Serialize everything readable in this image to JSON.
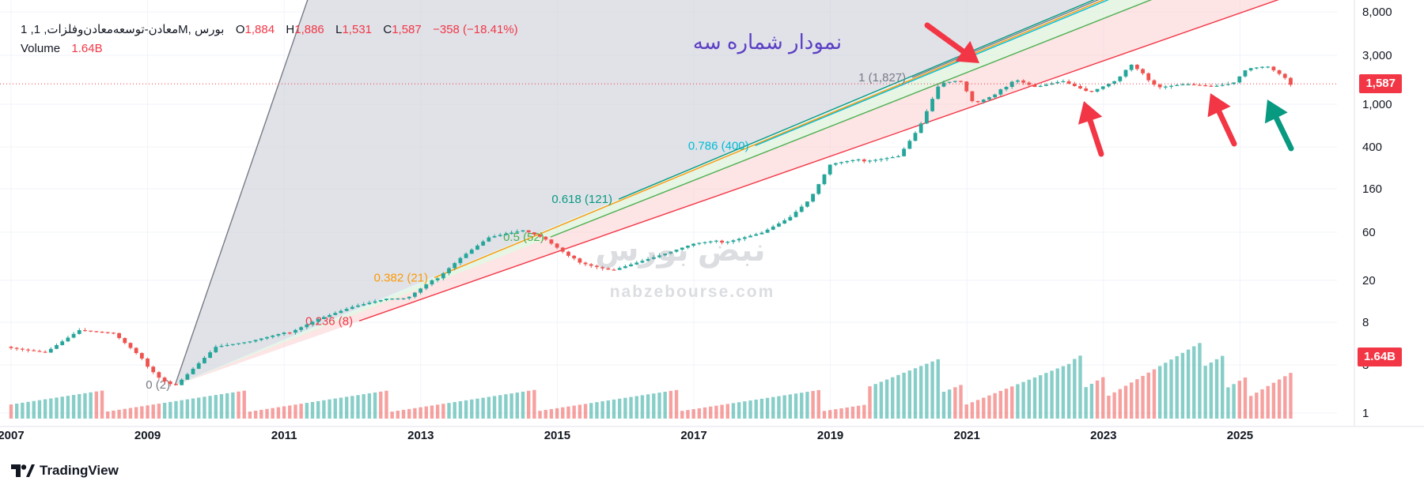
{
  "legend": {
    "symbol": "1 ,معادن-توسعه‌معادن‌وفلزات, 1M, بورس",
    "o_label": "O",
    "o_value": "1,884",
    "h_label": "H",
    "h_value": "1,886",
    "l_label": "L",
    "l_value": "1,531",
    "c_label": "C",
    "c_value": "1,587",
    "change": "−358 (−18.41%)",
    "volume_label": "Volume",
    "volume_value": "1.64B"
  },
  "annotation_title": "نمودار شماره سه",
  "watermark": {
    "url": "nabzebourse.com",
    "logo_text": "نبض بورس"
  },
  "footer": {
    "brand": "TradingView"
  },
  "price_tag": {
    "value": "1,587",
    "color": "#f23645"
  },
  "volume_tag": {
    "value": "1.64B",
    "color": "#f23645"
  },
  "colors": {
    "up": "#26a69a",
    "down": "#ef5350",
    "arrow_red": "#f23645",
    "arrow_green": "#089981",
    "annotation": "#5b3fc4"
  },
  "chart_data": {
    "type": "candlestick",
    "scale": "log",
    "y_ticks": [
      "8,000",
      "3,000",
      "1,000",
      "400",
      "160",
      "60",
      "20",
      "8",
      "3",
      "1"
    ],
    "x_ticks": [
      "2007",
      "2009",
      "2011",
      "2013",
      "2015",
      "2017",
      "2019",
      "2021",
      "2023",
      "2025"
    ],
    "fib_levels": [
      {
        "label": "0 (2)",
        "price": 2,
        "color": "#787b86"
      },
      {
        "label": "0.236 (8)",
        "price": 8,
        "color": "#f23645"
      },
      {
        "label": "0.382 (21)",
        "price": 21,
        "color": "#ff9800"
      },
      {
        "label": "0.5 (52)",
        "price": 52,
        "color": "#4caf50"
      },
      {
        "label": "0.618 (121)",
        "price": 121,
        "color": "#089981"
      },
      {
        "label": "0.786 (400)",
        "price": 400,
        "color": "#00bcd4"
      },
      {
        "label": "1 (1,827)",
        "price": 1827,
        "color": "#787b86"
      }
    ],
    "price_path": [
      [
        2007.0,
        4.5
      ],
      [
        2007.5,
        4.0
      ],
      [
        2008.0,
        6.5
      ],
      [
        2008.5,
        6.0
      ],
      [
        2008.8,
        4.0
      ],
      [
        2009.2,
        2.2
      ],
      [
        2009.4,
        1.9
      ],
      [
        2010.0,
        4.5
      ],
      [
        2010.5,
        5.0
      ],
      [
        2011.0,
        6.0
      ],
      [
        2011.5,
        8.5
      ],
      [
        2012.0,
        11
      ],
      [
        2012.5,
        13
      ],
      [
        2012.8,
        13
      ],
      [
        2013.2,
        20
      ],
      [
        2013.6,
        34
      ],
      [
        2014.0,
        52
      ],
      [
        2014.5,
        60
      ],
      [
        2014.8,
        50
      ],
      [
        2015.2,
        32
      ],
      [
        2015.5,
        28
      ],
      [
        2015.8,
        25
      ],
      [
        2016.2,
        30
      ],
      [
        2016.6,
        36
      ],
      [
        2017.0,
        44
      ],
      [
        2017.5,
        48
      ],
      [
        2018.0,
        58
      ],
      [
        2018.4,
        80
      ],
      [
        2018.7,
        120
      ],
      [
        2019.0,
        260
      ],
      [
        2019.3,
        280
      ],
      [
        2019.7,
        300
      ],
      [
        2020.0,
        320
      ],
      [
        2020.3,
        600
      ],
      [
        2020.6,
        1600
      ],
      [
        2020.9,
        1700
      ],
      [
        2021.1,
        1000
      ],
      [
        2021.4,
        1200
      ],
      [
        2021.7,
        1800
      ],
      [
        2022.0,
        1500
      ],
      [
        2022.4,
        1700
      ],
      [
        2022.8,
        1300
      ],
      [
        2023.2,
        1700
      ],
      [
        2023.4,
        2400
      ],
      [
        2023.8,
        1500
      ],
      [
        2024.2,
        1600
      ],
      [
        2024.6,
        1500
      ],
      [
        2024.9,
        1600
      ],
      [
        2025.1,
        2200
      ],
      [
        2025.4,
        2300
      ],
      [
        2025.6,
        1884
      ],
      [
        2025.75,
        1587
      ]
    ],
    "volume_scale": "relative"
  }
}
